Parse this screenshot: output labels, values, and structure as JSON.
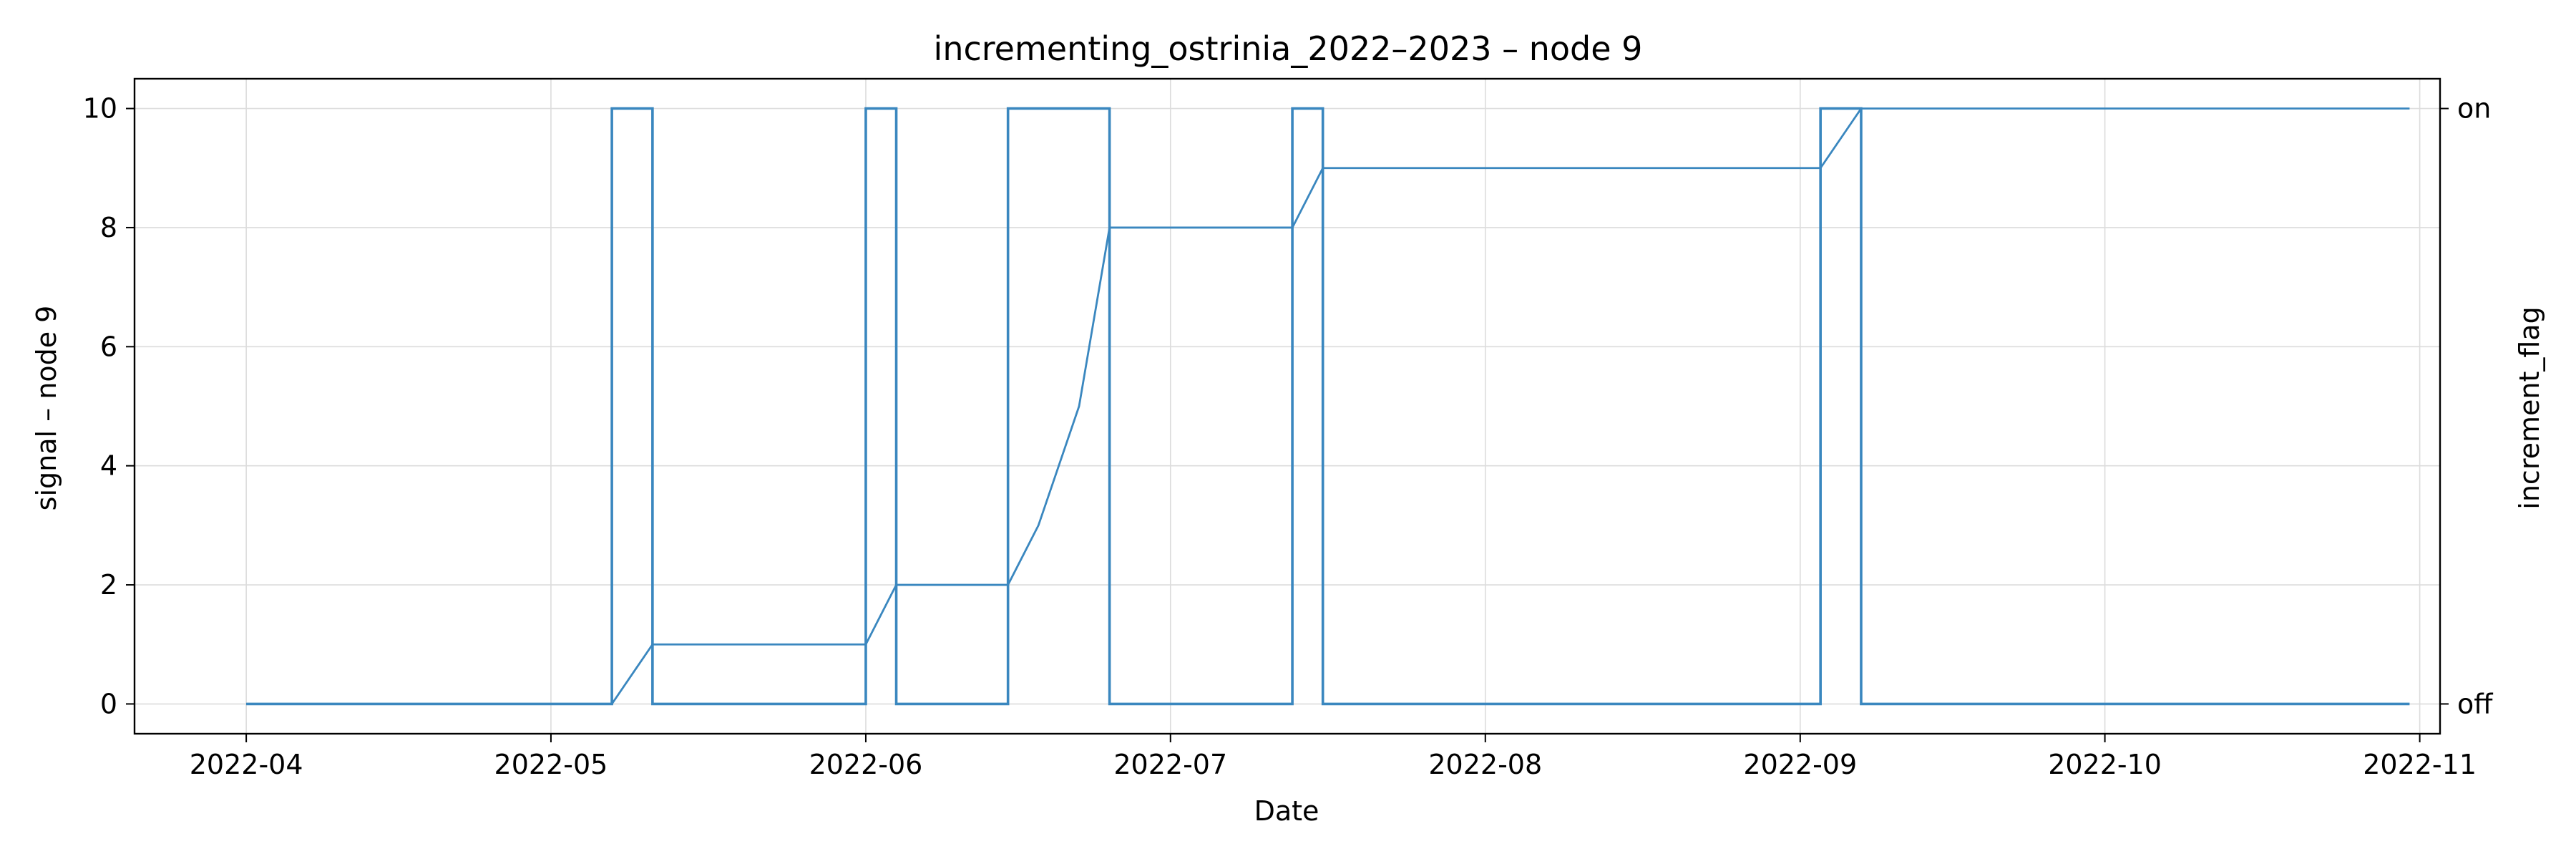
{
  "chart_data": {
    "type": "line",
    "title": "incrementing_ostrinia_2022–2023 – node 9",
    "xlabel": "Date",
    "ylabel": "signal – node 9",
    "y2label": "increment_flag",
    "ylim": [
      -0.5,
      10.5
    ],
    "xlim": [
      "2022-03-21",
      "2022-11-03"
    ],
    "yticks": [
      0,
      2,
      4,
      6,
      8,
      10
    ],
    "xticks": [
      "2022-04-01",
      "2022-05-01",
      "2022-06-01",
      "2022-07-01",
      "2022-08-01",
      "2022-09-01",
      "2022-10-01",
      "2022-11-01"
    ],
    "y2ticks": [
      {
        "value": 0,
        "label": "off"
      },
      {
        "value": 10,
        "label": "on"
      }
    ],
    "grid": true,
    "line_color": "#3a87bf",
    "series": [
      {
        "role": "signal",
        "step": false,
        "x": [
          "2022-04-01",
          "2022-05-07",
          "2022-05-11",
          "2022-06-01",
          "2022-06-04",
          "2022-06-15",
          "2022-06-18",
          "2022-06-22",
          "2022-06-25",
          "2022-07-13",
          "2022-07-16",
          "2022-09-03",
          "2022-09-07",
          "2022-10-31"
        ],
        "y": [
          0,
          0,
          1,
          1,
          2,
          2,
          3,
          5,
          8,
          8,
          9,
          9,
          10,
          10
        ]
      },
      {
        "role": "increment_flag",
        "step": true,
        "x": [
          "2022-04-01",
          "2022-05-07",
          "2022-05-11",
          "2022-06-01",
          "2022-06-04",
          "2022-06-15",
          "2022-06-25",
          "2022-07-13",
          "2022-07-16",
          "2022-09-03",
          "2022-09-07",
          "2022-10-31"
        ],
        "y": [
          0,
          10,
          0,
          10,
          0,
          10,
          0,
          10,
          0,
          10,
          0,
          0
        ]
      }
    ]
  }
}
